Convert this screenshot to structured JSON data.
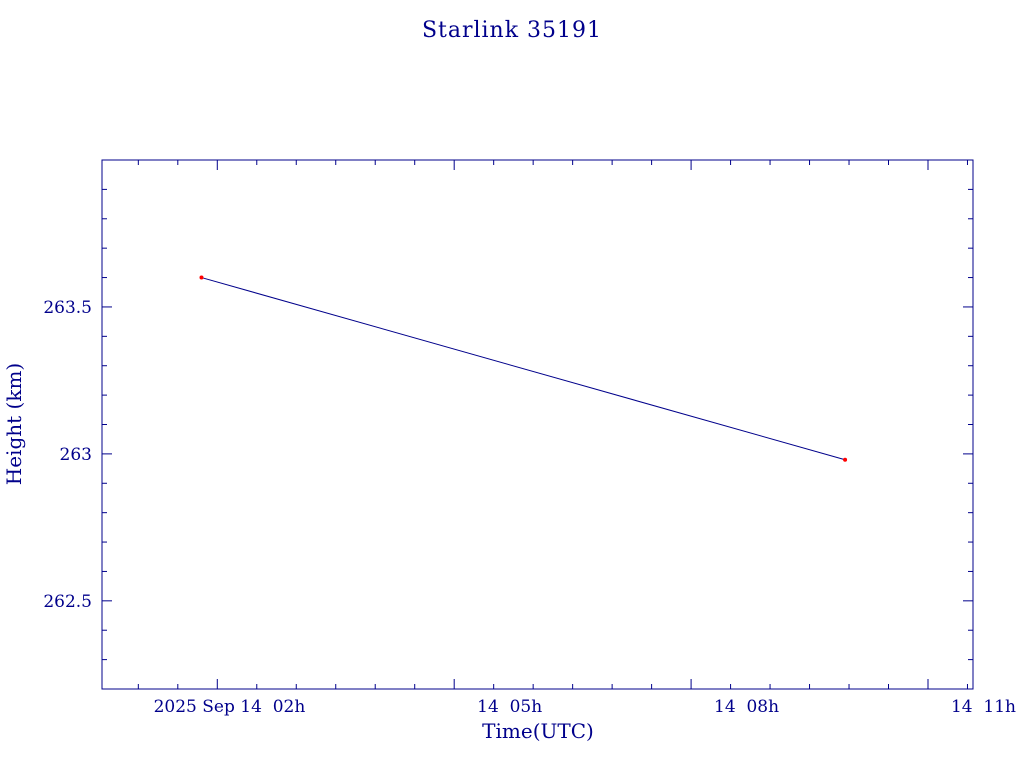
{
  "chart_data": {
    "type": "line",
    "title": "Starlink 35191",
    "xlabel": "Time(UTC)",
    "ylabel": "Height (km)",
    "x_tick_labels": [
      "2025 Sep 14  02h",
      "14  05h",
      "14  08h",
      "14  11h"
    ],
    "y_tick_labels": [
      "262.5",
      "263",
      "263.5"
    ],
    "x_ticks_hours": [
      2,
      5,
      8,
      11
    ],
    "y_ticks": [
      262.5,
      263,
      263.5
    ],
    "xlim_hours": [
      0.54,
      11.57
    ],
    "ylim": [
      262.2,
      264.0
    ],
    "x_unit_note": "hours UTC on 2025-09-14",
    "series": [
      {
        "points": [
          {
            "x": 1.8,
            "y": 263.6
          },
          {
            "x": 9.95,
            "y": 262.98
          }
        ]
      }
    ],
    "grid": false,
    "colors": {
      "axis": "#00008b",
      "text": "#00008b",
      "line": "#00008b",
      "marker": "#ff0000",
      "background": "#ffffff"
    }
  }
}
